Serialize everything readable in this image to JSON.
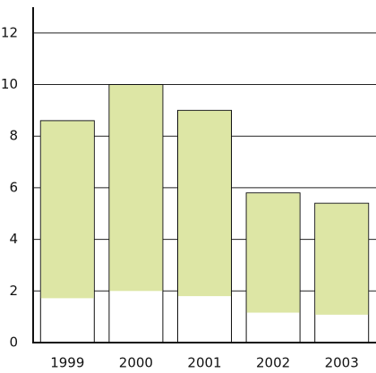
{
  "chart_data": {
    "type": "bar",
    "categories": [
      "1999",
      "2000",
      "2001",
      "2002",
      "2003"
    ],
    "values": [
      8.6,
      10.0,
      9.0,
      5.8,
      5.4
    ],
    "color": "#d9e39b",
    "ylim": [
      0,
      13
    ],
    "yticks": [
      0,
      2,
      4,
      6,
      8,
      10,
      12
    ],
    "grid": true
  }
}
